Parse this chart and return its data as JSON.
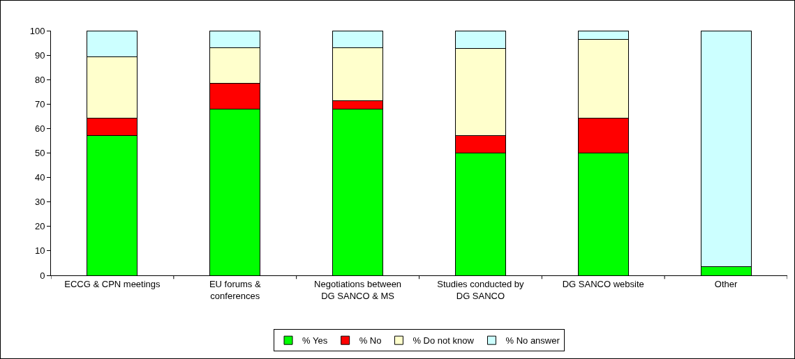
{
  "chart_data": {
    "type": "bar",
    "stacked": true,
    "categories": [
      "ECCG & CPN meetings",
      "EU forums & conferences",
      "Negotiations between DG SANCO & MS",
      "Studies conducted by DG SANCO",
      "DG SANCO website",
      "Other"
    ],
    "series": [
      {
        "name": "% Yes",
        "color": "#00ff00",
        "values": [
          57.1,
          67.9,
          67.9,
          50,
          50,
          3.6
        ]
      },
      {
        "name": "% No",
        "color": "#ff0000",
        "values": [
          7.1,
          10.7,
          3.6,
          7.1,
          14.3,
          0
        ]
      },
      {
        "name": "% Do not know",
        "color": "#ffffcc",
        "values": [
          25,
          14.3,
          21.4,
          35.7,
          32.1,
          0
        ]
      },
      {
        "name": "% No answer",
        "color": "#ccffff",
        "values": [
          10.7,
          7.1,
          7.1,
          7.1,
          3.6,
          96.4
        ]
      }
    ],
    "ylim": [
      0,
      100
    ],
    "yticks": [
      0,
      10,
      20,
      30,
      40,
      50,
      60,
      70,
      80,
      90,
      100
    ],
    "grid": false,
    "legend": "bottom"
  }
}
